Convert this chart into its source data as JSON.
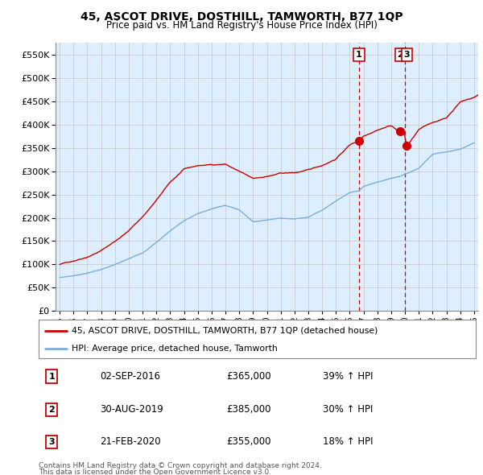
{
  "title": "45, ASCOT DRIVE, DOSTHILL, TAMWORTH, B77 1QP",
  "subtitle": "Price paid vs. HM Land Registry's House Price Index (HPI)",
  "legend_line1": "45, ASCOT DRIVE, DOSTHILL, TAMWORTH, B77 1QP (detached house)",
  "legend_line2": "HPI: Average price, detached house, Tamworth",
  "footer1": "Contains HM Land Registry data © Crown copyright and database right 2024.",
  "footer2": "This data is licensed under the Open Government Licence v3.0.",
  "table_rows": [
    [
      "1",
      "02-SEP-2016",
      "£365,000",
      "39% ↑ HPI"
    ],
    [
      "2",
      "30-AUG-2019",
      "£385,000",
      "30% ↑ HPI"
    ],
    [
      "3",
      "21-FEB-2020",
      "£355,000",
      "18% ↑ HPI"
    ]
  ],
  "sale_dates_num": [
    2016.67,
    2019.66,
    2020.13
  ],
  "sale_prices": [
    365000,
    385000,
    355000
  ],
  "sale_labels": [
    "1",
    "2",
    "3"
  ],
  "vline_dates": [
    2016.67,
    2020.0
  ],
  "red_color": "#cc0000",
  "blue_color": "#7aaddb",
  "grid_color": "#cccccc",
  "bg_color": "#ffffff",
  "plot_bg": "#ddeeff",
  "ylim": [
    0,
    575000
  ],
  "yticks": [
    0,
    50000,
    100000,
    150000,
    200000,
    250000,
    300000,
    350000,
    400000,
    450000,
    500000,
    550000
  ],
  "xlim_left": 1994.7,
  "xlim_right": 2025.3
}
